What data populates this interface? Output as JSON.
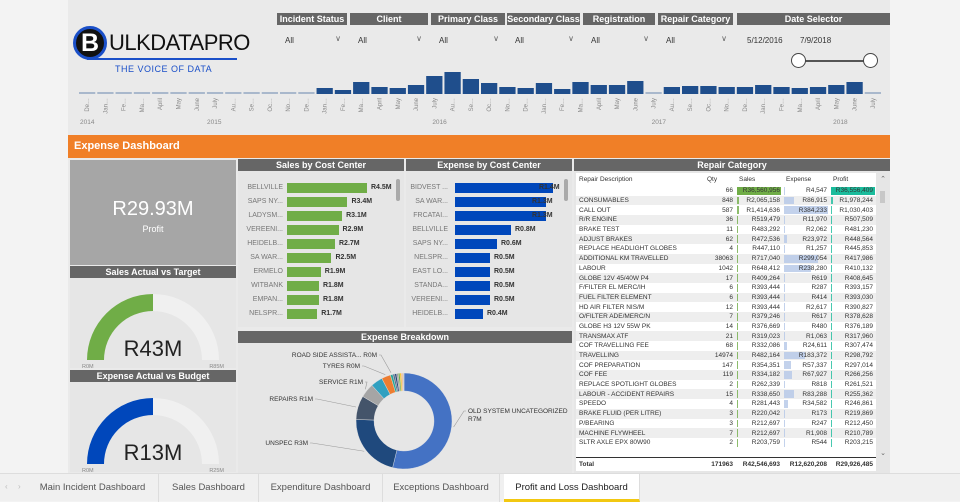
{
  "logo": {
    "text": "BULKDATAPRO",
    "tagline": "THE VOICE OF DATA"
  },
  "slicers": [
    {
      "label": "Incident Status",
      "value": "All"
    },
    {
      "label": "Client",
      "value": "All"
    },
    {
      "label": "Primary Class",
      "value": "All"
    },
    {
      "label": "Secondary Class",
      "value": "All"
    },
    {
      "label": "Registration",
      "value": "All"
    },
    {
      "label": "Repair Category",
      "value": "All"
    }
  ],
  "date_selector": {
    "label": "Date Selector",
    "start": "5/12/2016",
    "end": "7/9/2018",
    "range_fraction": [
      0,
      1
    ]
  },
  "timeline_chart": {
    "type": "bar",
    "months": [
      "De…",
      "Jan…",
      "Fe…",
      "Ma…",
      "April",
      "May",
      "June",
      "July",
      "Au…",
      "Se…",
      "Oc…",
      "No…",
      "De…",
      "Jan…",
      "Fe…",
      "Ma…",
      "April",
      "May",
      "June",
      "July",
      "Au…",
      "Se…",
      "Oc…",
      "No…",
      "De…",
      "Jan…",
      "Fe…",
      "Ma…",
      "April",
      "May",
      "June",
      "July",
      "Au…",
      "Se…",
      "Oc…",
      "No…",
      "De…",
      "Jan…",
      "Fe…",
      "Ma…",
      "April",
      "May",
      "June",
      "July"
    ],
    "years": [
      "2014",
      "2015",
      "2016",
      "2017",
      "2018"
    ],
    "values": [
      1,
      1,
      1,
      1,
      1,
      1,
      1,
      1,
      1,
      1,
      1,
      1,
      1,
      3,
      2,
      6,
      3.5,
      3,
      4.5,
      9,
      11,
      7.5,
      5.5,
      3.5,
      3,
      5.5,
      2.5,
      6,
      4.5,
      4.5,
      6.5,
      1,
      3.5,
      4,
      4,
      3.5,
      3.5,
      4.5,
      3.5,
      3,
      3.5,
      4.5,
      6,
      0.5
    ],
    "bar_color": "#1f4e8c"
  },
  "banner": {
    "title": "Expense Dashboard",
    "color": "#f07f27"
  },
  "kpi": {
    "value": "R29.93M",
    "label": "Profit"
  },
  "sales_gauge": {
    "title": "Sales Actual vs Target",
    "value": "R43M",
    "min": "R0M",
    "max": "R85M",
    "fraction": 0.5,
    "color": "#70ad47"
  },
  "expense_gauge": {
    "title": "Expense Actual vs Budget",
    "value": "R13M",
    "min": "R0M",
    "max": "R25M",
    "fraction": 0.5,
    "color": "#0047bb"
  },
  "chart_data": [
    {
      "type": "bar",
      "title": "Sales by Cost Center",
      "orientation": "horizontal",
      "color": "#70ad47",
      "categories": [
        "BELLVILLE",
        "SAPS NY...",
        "LADYSM...",
        "VEREENI...",
        "HEIDELB...",
        "SA WAR...",
        "ERMELO",
        "WITBANK",
        "EMPAN...",
        "NELSPR..."
      ],
      "values": [
        4.5,
        3.4,
        3.1,
        2.9,
        2.7,
        2.5,
        1.9,
        1.8,
        1.8,
        1.7
      ],
      "labels": [
        "R4.5M",
        "R3.4M",
        "R3.1M",
        "R2.9M",
        "R2.7M",
        "R2.5M",
        "R1.9M",
        "R1.8M",
        "R1.8M",
        "R1.7M"
      ]
    },
    {
      "type": "bar",
      "title": "Expense by Cost Center",
      "orientation": "horizontal",
      "color": "#0047bb",
      "categories": [
        "BIDVEST ...",
        "SA WAR...",
        "FRCATAI...",
        "BELLVILLE",
        "SAPS NY...",
        "NELSPR...",
        "EAST LO...",
        "STANDA...",
        "VEREENI...",
        "HEIDELB..."
      ],
      "values": [
        1.4,
        1.3,
        1.3,
        0.8,
        0.6,
        0.5,
        0.5,
        0.5,
        0.5,
        0.4
      ],
      "labels": [
        "R1.4M",
        "R1.3M",
        "R1.3M",
        "R0.8M",
        "R0.6M",
        "R0.5M",
        "R0.5M",
        "R0.5M",
        "R0.5M",
        "R0.4M"
      ]
    },
    {
      "type": "pie",
      "title": "Expense Breakdown",
      "donut": true,
      "slices": [
        {
          "label": "OLD SYSTEM UNCATEGORIZED R7M",
          "value": 6.7,
          "color": "#4472c4"
        },
        {
          "label": "UNSPEC R3M",
          "value": 2.7,
          "color": "#1f497d"
        },
        {
          "label": "REPAIRS R1M",
          "value": 1.0,
          "color": "#44546a"
        },
        {
          "label": "SERVICE R1M",
          "value": 0.6,
          "color": "#a5a5a5"
        },
        {
          "label": "",
          "value": 0.5,
          "color": "#31a0c0"
        },
        {
          "label": "TYRES R0M",
          "value": 0.38,
          "color": "#ed7d31"
        },
        {
          "label": "ROAD SIDE ASSISTA... R0M",
          "value": 0.1,
          "color": "#26a69a"
        },
        {
          "label": "",
          "value": 0.08,
          "color": "#5b6e8c"
        },
        {
          "label": "",
          "value": 0.08,
          "color": "#264478"
        },
        {
          "label": "",
          "value": 0.07,
          "color": "#9e9e9e"
        },
        {
          "label": "",
          "value": 0.07,
          "color": "#70ad47"
        },
        {
          "label": "",
          "value": 0.06,
          "color": "#ffc000"
        },
        {
          "label": "",
          "value": 0.06,
          "color": "#f4b183"
        },
        {
          "label": "",
          "value": 0.05,
          "color": "#c9c9c9"
        }
      ]
    }
  ],
  "repair_table": {
    "title": "Repair Category",
    "columns": [
      "Repair Description",
      "Qty",
      "Sales",
      "Expense",
      "Profit"
    ],
    "sort_column": "Profit",
    "rows": [
      [
        "",
        "66",
        "R36,560,956",
        "R4,547",
        "R36,556,409"
      ],
      [
        "CONSUMABLES",
        "848",
        "R2,065,158",
        "R86,915",
        "R1,978,244"
      ],
      [
        "CALL OUT",
        "587",
        "R1,414,636",
        "R384,233",
        "R1,030,403"
      ],
      [
        "R/R ENGINE",
        "36",
        "R519,479",
        "R11,970",
        "R507,509"
      ],
      [
        "BRAKE TEST",
        "11",
        "R483,292",
        "R2,062",
        "R481,230"
      ],
      [
        "ADJUST BRAKES",
        "62",
        "R472,536",
        "R23,972",
        "R448,564"
      ],
      [
        "REPLACE HEADLIGHT GLOBES",
        "4",
        "R447,110",
        "R1,257",
        "R445,853"
      ],
      [
        "ADDITIONAL KM TRAVELLED",
        "38063",
        "R717,040",
        "R299,054",
        "R417,986"
      ],
      [
        "LABOUR",
        "1042",
        "R648,412",
        "R238,280",
        "R410,132"
      ],
      [
        "GLOBE 12V 45/40W P4",
        "17",
        "R409,264",
        "R619",
        "R408,645"
      ],
      [
        "F/FILTER EL MERC/IH",
        "6",
        "R393,444",
        "R287",
        "R393,157"
      ],
      [
        "FUEL FILTER ELEMENT",
        "6",
        "R393,444",
        "R414",
        "R393,030"
      ],
      [
        "HD AIR FILTER NIS/M",
        "12",
        "R393,444",
        "R2,617",
        "R390,827"
      ],
      [
        "O/FILTER ADE/MERC/N",
        "7",
        "R379,246",
        "R617",
        "R378,628"
      ],
      [
        "GLOBE H3 12V 55W PK",
        "14",
        "R376,669",
        "R480",
        "R376,189"
      ],
      [
        "TRANSMAX ATF",
        "21",
        "R319,023",
        "R1,063",
        "R317,960"
      ],
      [
        "COF TRAVELLING FEE",
        "68",
        "R332,086",
        "R24,611",
        "R307,474"
      ],
      [
        "TRAVELLING",
        "14974",
        "R482,164",
        "R183,372",
        "R298,792"
      ],
      [
        "COF PREPARATION",
        "147",
        "R354,351",
        "R57,337",
        "R297,014"
      ],
      [
        "COF FEE",
        "119",
        "R334,182",
        "R67,927",
        "R266,256"
      ],
      [
        "REPLACE SPOTLIGHT GLOBES",
        "2",
        "R262,339",
        "R818",
        "R261,521"
      ],
      [
        "LABOUR - ACCIDENT REPAIRS",
        "15",
        "R338,650",
        "R83,288",
        "R255,362"
      ],
      [
        "SPEEDO",
        "4",
        "R281,443",
        "R34,582",
        "R246,861"
      ],
      [
        "BRAKE FLUID (PER LITRE)",
        "3",
        "R220,042",
        "R173",
        "R219,869"
      ],
      [
        "P/BEARING",
        "3",
        "R212,697",
        "R247",
        "R212,450"
      ],
      [
        "MACHINE FLYWHEEL",
        "7",
        "R212,697",
        "R1,908",
        "R210,789"
      ],
      [
        "SLTR AXLE EPX 80W90",
        "2",
        "R203,759",
        "R544",
        "R203,215"
      ]
    ],
    "total": [
      "Total",
      "171963",
      "R42,546,693",
      "R12,620,208",
      "R29,926,485"
    ],
    "bar_colors": {
      "sales": "#70ad47",
      "expense": "#b4c7e7",
      "profit": "#1abc9c"
    }
  },
  "tabs": [
    {
      "label": "Main Incident Dashboard",
      "active": false
    },
    {
      "label": "Sales Dashboard",
      "active": false
    },
    {
      "label": "Expenditure Dashboard",
      "active": false
    },
    {
      "label": "Exceptions Dashboard",
      "active": false
    },
    {
      "label": "Profit and Loss Dashboard",
      "active": true
    }
  ]
}
